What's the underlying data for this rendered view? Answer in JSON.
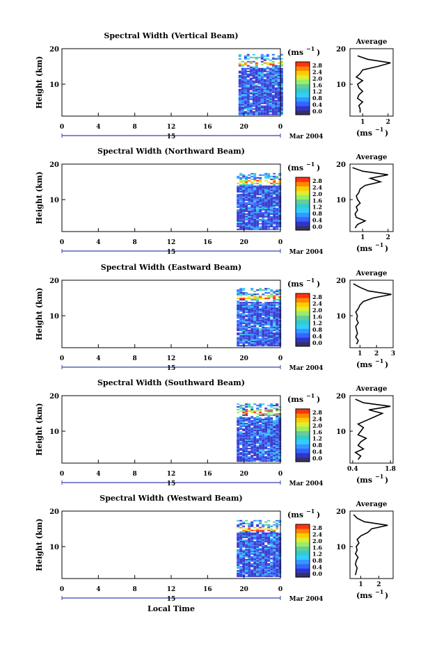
{
  "figure": {
    "xlabel": "Local Time",
    "date_label": "Mar 2004",
    "day_label": "15",
    "colorbar_unit": "(ms",
    "colorbar_unit_exp": "−1",
    "colorbar_ticks": [
      "0.0",
      "0.4",
      "0.8",
      "1.2",
      "1.6",
      "2.0",
      "2.4",
      "2.8"
    ],
    "ylabel": "Height (km)",
    "avg_title": "Average",
    "avg_xlabel": "(ms",
    "avg_xlabel_exp": "−1",
    "colormap": [
      "#333366",
      "#3333cc",
      "#3366ff",
      "#3399ff",
      "#33ccff",
      "#33cccc",
      "#66cc99",
      "#99ee66",
      "#ddee33",
      "#ffcc00",
      "#ff8800",
      "#ff3311"
    ]
  },
  "chart_data": [
    {
      "type": "heatmap",
      "title": "Spectral Width (Vertical Beam)",
      "x_ticks": [
        "0",
        "4",
        "8",
        "12",
        "16",
        "20",
        "0"
      ],
      "xlim_hours": [
        0,
        24
      ],
      "y_ticks": [
        "10",
        "20"
      ],
      "ylim_km": [
        1,
        20
      ],
      "data_extent_hours": [
        19.4,
        24
      ],
      "data_extent_km": [
        1.5,
        18.5
      ],
      "average_profile": {
        "x_ticks": [
          "1",
          "2"
        ],
        "xlim": [
          0.5,
          2.2
        ],
        "height_km": [
          2,
          3,
          4,
          5,
          6,
          7,
          8,
          9,
          10,
          11,
          12,
          13,
          14,
          15,
          16,
          17,
          18
        ],
        "value": [
          0.9,
          0.9,
          0.85,
          1.0,
          0.8,
          0.85,
          1.0,
          0.85,
          0.8,
          1.0,
          0.75,
          0.9,
          1.0,
          1.6,
          2.1,
          1.2,
          0.8
        ]
      }
    },
    {
      "type": "heatmap",
      "title": "Spectral Width (Northward Beam)",
      "x_ticks": [
        "0",
        "4",
        "8",
        "12",
        "16",
        "20",
        "0"
      ],
      "xlim_hours": [
        0,
        24
      ],
      "y_ticks": [
        "10",
        "20"
      ],
      "ylim_km": [
        1,
        20
      ],
      "data_extent_hours": [
        19.2,
        24
      ],
      "data_extent_km": [
        1.5,
        17.5
      ],
      "average_profile": {
        "x_ticks": [
          "1",
          "2"
        ],
        "xlim": [
          0.5,
          2.2
        ],
        "height_km": [
          2,
          3,
          4,
          5,
          6,
          7,
          8,
          9,
          10,
          11,
          12,
          13,
          14,
          15,
          16,
          17,
          18,
          19
        ],
        "value": [
          0.7,
          0.8,
          1.1,
          0.75,
          0.7,
          0.8,
          0.75,
          0.9,
          0.8,
          0.75,
          0.85,
          0.9,
          1.1,
          1.7,
          1.3,
          2.0,
          1.0,
          0.6
        ]
      }
    },
    {
      "type": "heatmap",
      "title": "Spectral Width (Eastward Beam)",
      "x_ticks": [
        "0",
        "4",
        "8",
        "12",
        "16",
        "20",
        "0"
      ],
      "xlim_hours": [
        0,
        24
      ],
      "y_ticks": [
        "10",
        "20"
      ],
      "ylim_km": [
        1,
        20
      ],
      "data_extent_hours": [
        19.2,
        24
      ],
      "data_extent_km": [
        1.5,
        17.8
      ],
      "average_profile": {
        "x_ticks": [
          "1",
          "2",
          "3"
        ],
        "xlim": [
          0.4,
          3.0
        ],
        "height_km": [
          2,
          3,
          4,
          5,
          6,
          7,
          8,
          9,
          10,
          11,
          12,
          13,
          14,
          15,
          16,
          17,
          18,
          19
        ],
        "value": [
          0.8,
          0.9,
          0.75,
          0.85,
          0.8,
          0.75,
          0.9,
          0.8,
          0.85,
          0.75,
          0.9,
          1.0,
          1.2,
          1.8,
          2.9,
          1.5,
          1.0,
          0.6
        ]
      }
    },
    {
      "type": "heatmap",
      "title": "Spectral Width (Southward Beam)",
      "x_ticks": [
        "0",
        "4",
        "8",
        "12",
        "16",
        "20",
        "0"
      ],
      "xlim_hours": [
        0,
        24
      ],
      "y_ticks": [
        "10",
        "20"
      ],
      "ylim_km": [
        1,
        20
      ],
      "data_extent_hours": [
        19.2,
        24
      ],
      "data_extent_km": [
        1.5,
        17.8
      ],
      "average_profile": {
        "x_ticks": [
          "0.4",
          "1.8"
        ],
        "xlim": [
          0.3,
          1.9
        ],
        "height_km": [
          2,
          3,
          4,
          5,
          6,
          7,
          8,
          9,
          10,
          11,
          12,
          13,
          14,
          15,
          16,
          17,
          18,
          19
        ],
        "value": [
          0.6,
          0.7,
          0.5,
          0.8,
          0.6,
          0.7,
          0.9,
          0.6,
          0.7,
          0.8,
          0.6,
          0.9,
          1.2,
          1.5,
          1.0,
          1.8,
          0.8,
          0.5
        ]
      }
    },
    {
      "type": "heatmap",
      "title": "Spectral Width (Westward Beam)",
      "x_ticks": [
        "0",
        "4",
        "8",
        "12",
        "16",
        "20",
        "0"
      ],
      "xlim_hours": [
        0,
        24
      ],
      "y_ticks": [
        "10",
        "20"
      ],
      "ylim_km": [
        1,
        20
      ],
      "data_extent_hours": [
        19.2,
        24
      ],
      "data_extent_km": [
        1.5,
        17.5
      ],
      "average_profile": {
        "x_ticks": [
          "1",
          "2"
        ],
        "xlim": [
          0.4,
          2.8
        ],
        "height_km": [
          2,
          3,
          4,
          5,
          6,
          7,
          8,
          9,
          10,
          11,
          12,
          13,
          14,
          15,
          16,
          17,
          18,
          19
        ],
        "value": [
          0.7,
          0.75,
          0.8,
          0.7,
          0.75,
          0.85,
          0.7,
          0.8,
          0.75,
          0.9,
          0.8,
          1.0,
          1.4,
          1.6,
          2.5,
          1.2,
          0.8,
          0.6
        ]
      }
    }
  ]
}
